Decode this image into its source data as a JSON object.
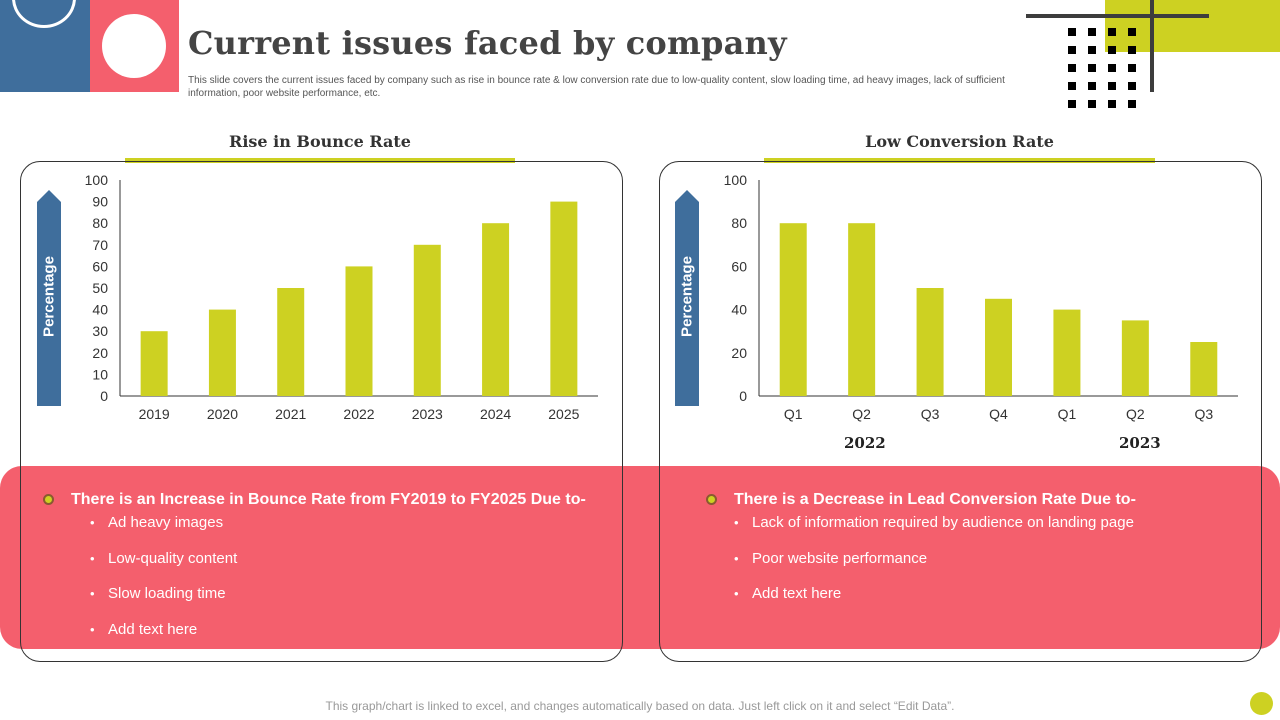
{
  "header": {
    "title": "Current issues faced by company",
    "subtitle": "This slide covers the current issues faced by company such as rise in bounce rate & low conversion rate due to low-quality content, slow loading time, ad heavy images, lack of sufficient information, poor website performance, etc."
  },
  "colors": {
    "accent_yellow": "#cdd122",
    "accent_pink": "#f45f6d",
    "accent_blue": "#3f6e9c",
    "dark": "#3d3d3d"
  },
  "left_panel": {
    "title": "Rise in Bounce Rate",
    "ylabel": "Percentage",
    "note": {
      "heading": "There is an Increase in Bounce Rate from FY2019 to FY2025 Due to-",
      "items": [
        "Ad heavy images",
        "Low-quality content",
        "Slow loading time",
        "Add text here"
      ]
    }
  },
  "right_panel": {
    "title": "Low Conversion Rate",
    "ylabel": "Percentage",
    "groups": [
      "2022",
      "2023"
    ],
    "note": {
      "heading": "There is a Decrease in Lead Conversion Rate Due to-",
      "items": [
        "Lack of information required by audience on landing page",
        "Poor website performance",
        "Add text here"
      ]
    }
  },
  "footer": {
    "note": "This graph/chart is linked to excel, and changes automatically based on data. Just left click on it and select “Edit Data”."
  },
  "chart_data": [
    {
      "type": "bar",
      "title": "Rise in Bounce Rate",
      "categories": [
        "2019",
        "2020",
        "2021",
        "2022",
        "2023",
        "2024",
        "2025"
      ],
      "values": [
        30,
        40,
        50,
        60,
        70,
        80,
        90
      ],
      "xlabel": "",
      "ylabel": "Percentage",
      "ylim": [
        0,
        100
      ],
      "yticks": [
        0,
        10,
        20,
        30,
        40,
        50,
        60,
        70,
        80,
        90,
        100
      ],
      "grid": false,
      "color": "#cdd122"
    },
    {
      "type": "bar",
      "title": "Low Conversion Rate",
      "categories": [
        "Q1",
        "Q2",
        "Q3",
        "Q4",
        "Q1",
        "Q2",
        "Q3"
      ],
      "category_groups": [
        "2022",
        "2022",
        "2022",
        "2022",
        "2023",
        "2023",
        "2023"
      ],
      "values": [
        80,
        80,
        50,
        45,
        40,
        35,
        25
      ],
      "xlabel": "",
      "ylabel": "Percentage",
      "ylim": [
        0,
        100
      ],
      "yticks": [
        0,
        20,
        40,
        60,
        80,
        100
      ],
      "grid": false,
      "color": "#cdd122"
    }
  ]
}
